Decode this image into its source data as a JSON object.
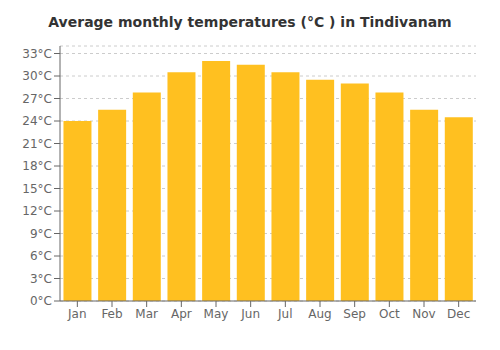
{
  "chart_data": {
    "type": "bar",
    "title": "Average monthly temperatures (°C ) in Tindivanam",
    "categories": [
      "Jan",
      "Feb",
      "Mar",
      "Apr",
      "May",
      "Jun",
      "Jul",
      "Aug",
      "Sep",
      "Oct",
      "Nov",
      "Dec"
    ],
    "values": [
      24.0,
      25.5,
      27.8,
      30.5,
      32.0,
      31.5,
      30.5,
      29.5,
      29.0,
      27.8,
      25.5,
      24.5
    ],
    "color": "#FFC020",
    "ylim": [
      0,
      34
    ],
    "yticks": [
      {
        "value": 0,
        "label": "0°C"
      },
      {
        "value": 3,
        "label": "3°C"
      },
      {
        "value": 6,
        "label": "6°C"
      },
      {
        "value": 9,
        "label": "9°C"
      },
      {
        "value": 12,
        "label": "12°C"
      },
      {
        "value": 15,
        "label": "15°C"
      },
      {
        "value": 18,
        "label": "18°C"
      },
      {
        "value": 21,
        "label": "21°C"
      },
      {
        "value": 24,
        "label": "24°C"
      },
      {
        "value": 27,
        "label": "27°C"
      },
      {
        "value": 30,
        "label": "30°C"
      },
      {
        "value": 33,
        "label": "33°C"
      }
    ],
    "grid": true
  }
}
